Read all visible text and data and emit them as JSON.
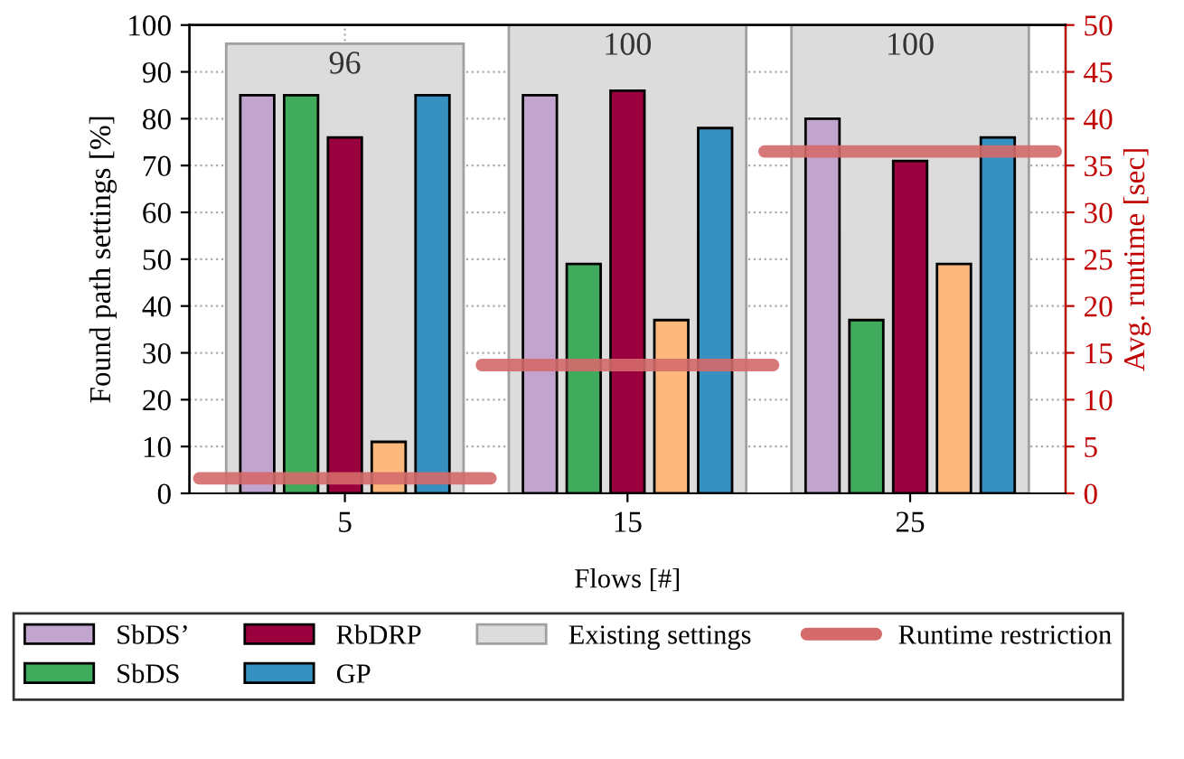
{
  "chart_data": {
    "type": "bar",
    "categories": [
      "5",
      "15",
      "25"
    ],
    "xlabel": "Flows [#]",
    "ylabel": "Found path settings [%]",
    "y2label": "Avg. runtime [sec]",
    "ylim": [
      0,
      100
    ],
    "yticks": [
      0,
      10,
      20,
      30,
      40,
      50,
      60,
      70,
      80,
      90,
      100
    ],
    "y2lim": [
      0,
      50
    ],
    "y2ticks": [
      0,
      5,
      10,
      15,
      20,
      25,
      30,
      35,
      40,
      45,
      50
    ],
    "grid": true,
    "legend": "bottom",
    "series": [
      {
        "name": "Existing settings",
        "color": "#dcdcdc",
        "values": [
          96,
          100,
          100
        ],
        "value_labels": [
          "96",
          "100",
          "100"
        ]
      },
      {
        "name": "SbDS’",
        "color": "#c2a5cf",
        "values": [
          85,
          85,
          80
        ]
      },
      {
        "name": "SbDS",
        "color": "#41ab5d",
        "values": [
          85,
          49,
          37
        ]
      },
      {
        "name": "RbDRP",
        "color": "#99003d",
        "values": [
          76,
          86,
          71
        ]
      },
      {
        "color": "#fdb97d",
        "values": [
          11,
          37,
          49
        ]
      },
      {
        "name": "GP",
        "color": "#3690c0",
        "values": [
          85,
          78,
          76
        ]
      }
    ],
    "ref_lines": [
      {
        "axis": "y2",
        "value": 1.6,
        "label": "Runtime restriction",
        "color": "#d46a6a"
      },
      {
        "axis": "y2",
        "value": 13.7,
        "color": "#d46a6a"
      },
      {
        "axis": "y2",
        "value": 36.5,
        "color": "#d46a6a"
      }
    ]
  }
}
